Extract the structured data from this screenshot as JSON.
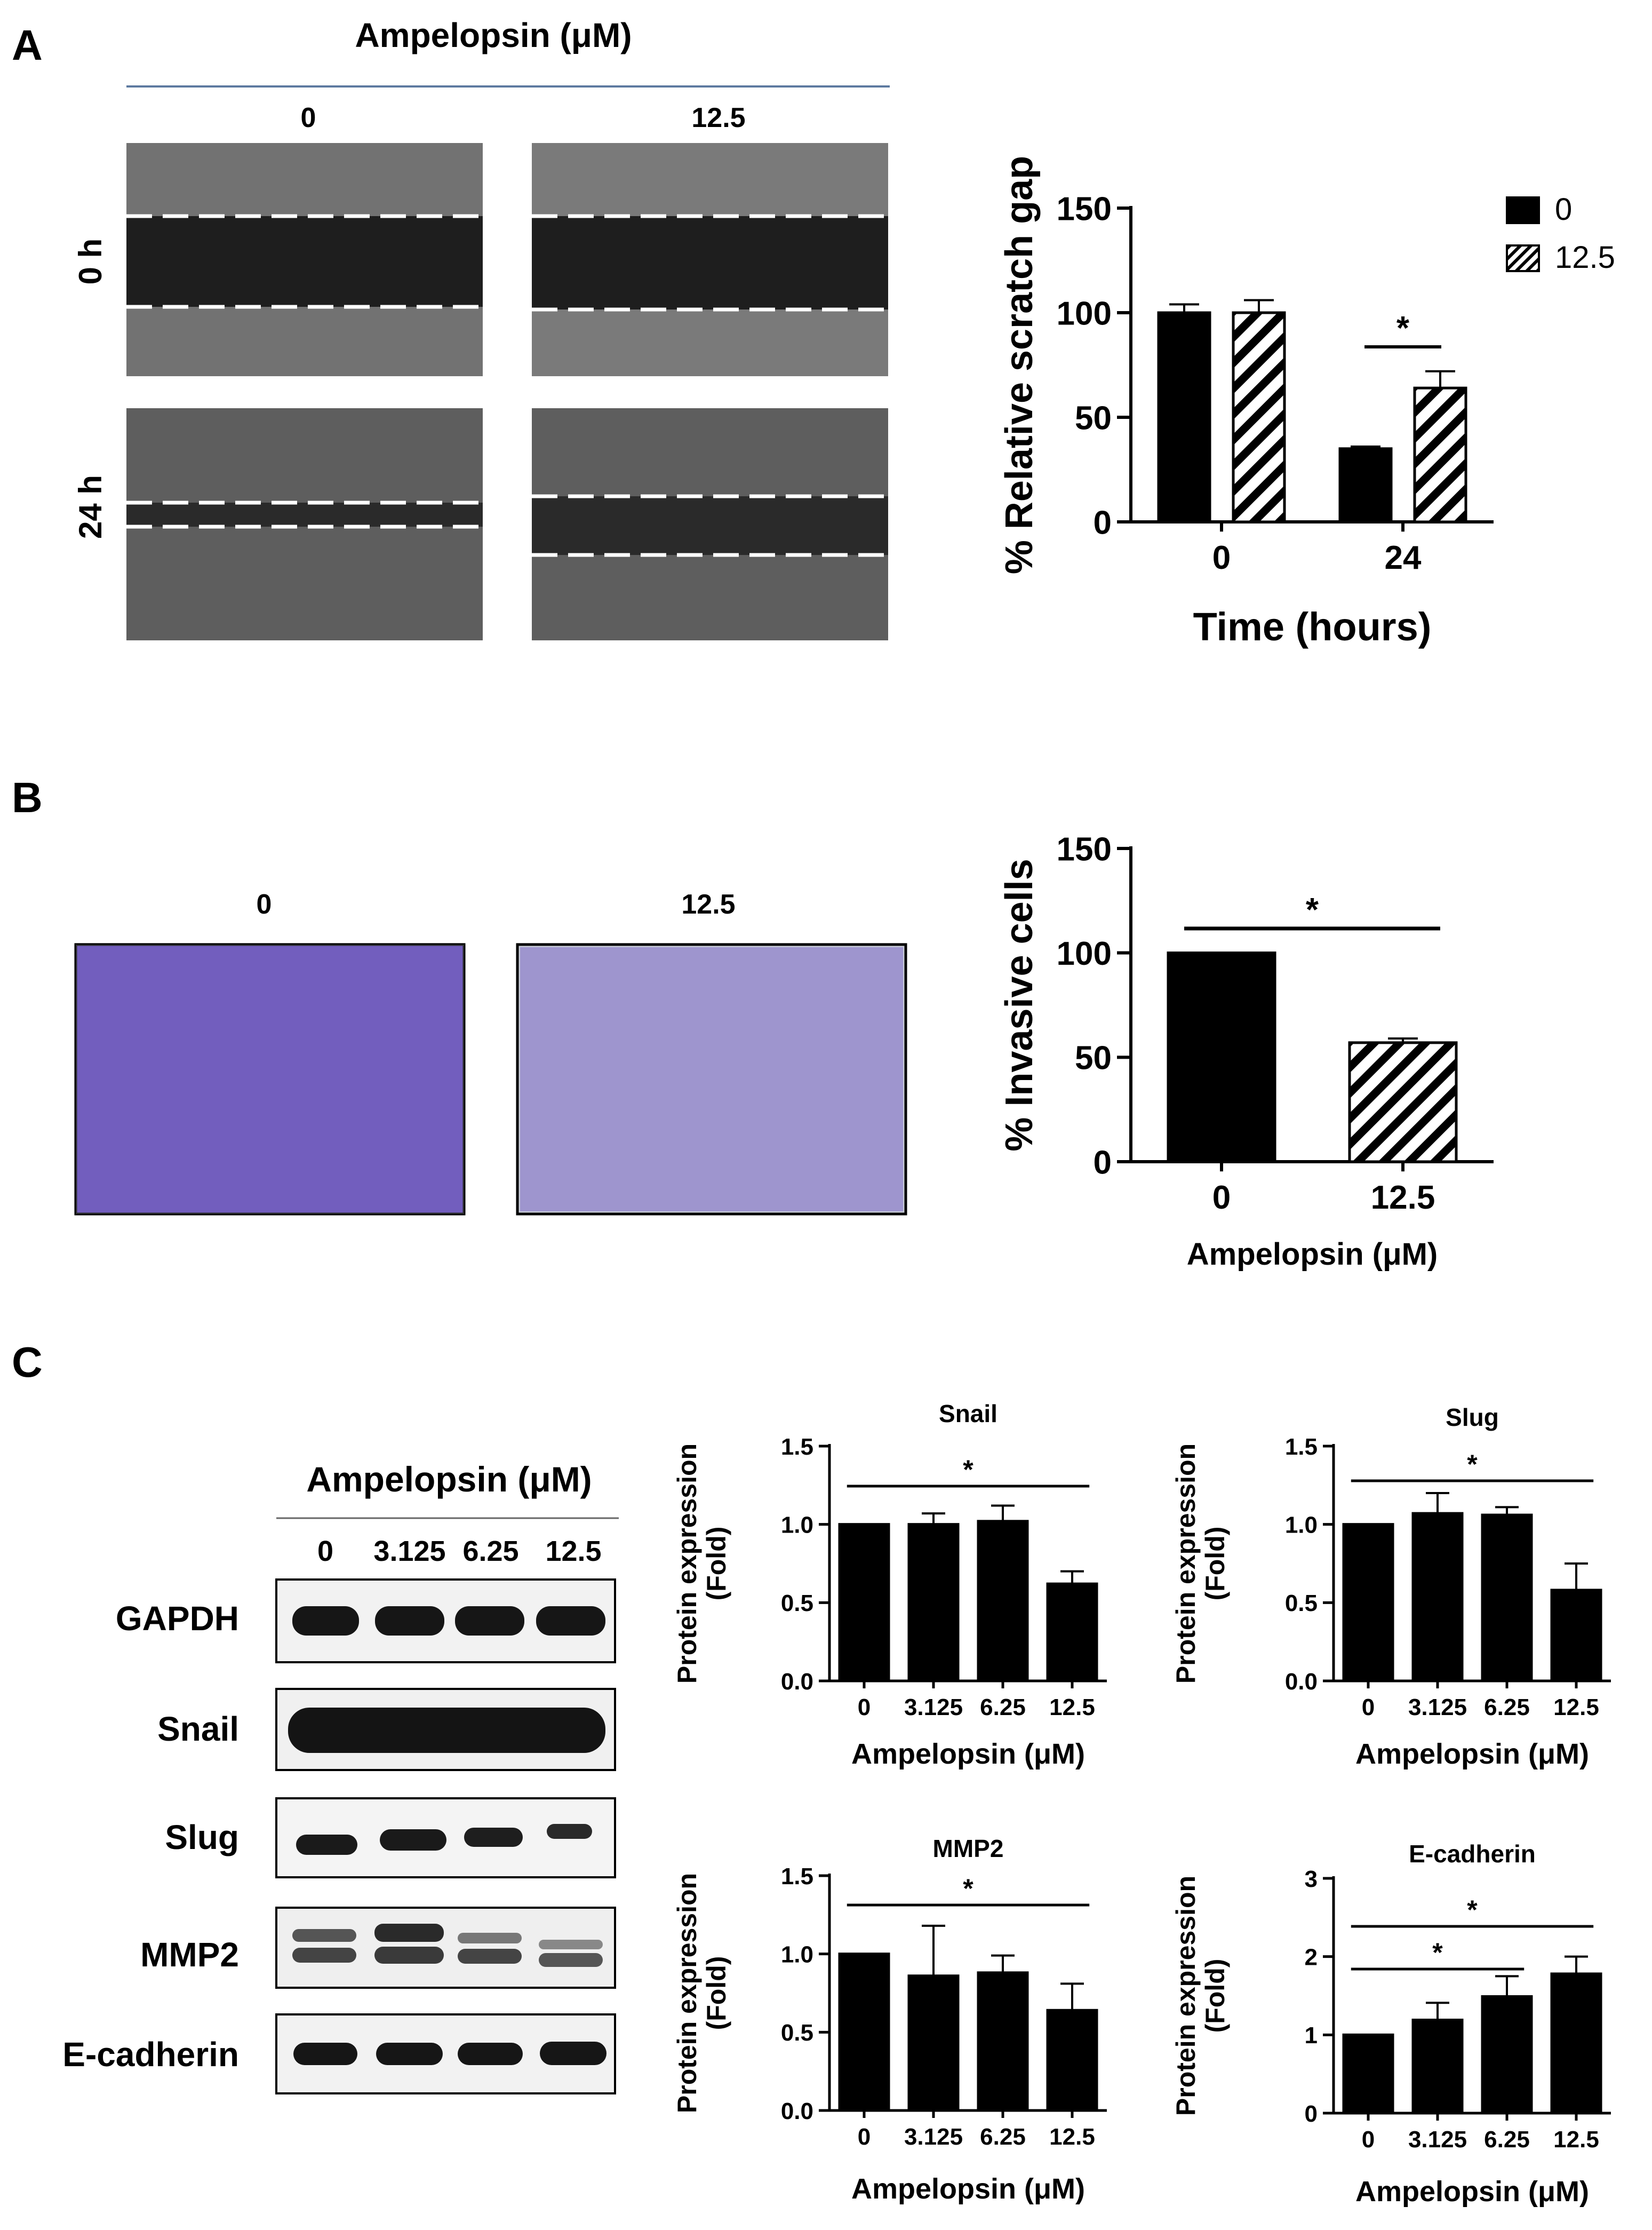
{
  "panels": {
    "A": {
      "letter": "A",
      "treatment_title": "Ampelopsin (μM)",
      "columns": [
        "0",
        "12.5"
      ],
      "rows": [
        "0 h",
        "24 h"
      ],
      "image_description": "wound-healing scratch assay micrographs with dashed lines marking scratch edges"
    },
    "B": {
      "letter": "B",
      "columns": [
        "0",
        "12.5"
      ],
      "image_description": "crystal violet stained invasive cells on transwell membrane"
    },
    "C": {
      "letter": "C",
      "blot_title": "Ampelopsin (μM)",
      "lanes": [
        "0",
        "3.125",
        "6.25",
        "12.5"
      ],
      "proteins": [
        "GAPDH",
        "Snail",
        "Slug",
        "MMP2",
        "E-cadherin"
      ]
    }
  },
  "colors": {
    "bar_fill": "#000000",
    "image_bg": "#2b2b2b",
    "crystal_violet": "#5a3fb8",
    "membrane": "#c9cdd8",
    "header_rule": "#5d7aa0"
  },
  "chart_data": [
    {
      "id": "A-scratch",
      "type": "bar",
      "title": "",
      "xlabel": "Time (hours)",
      "ylabel": "% Relative scratch gap",
      "categories": [
        "0",
        "24"
      ],
      "series": [
        {
          "name": "0",
          "pattern": "solid",
          "values": [
            100,
            35
          ],
          "errors": [
            4,
            1
          ]
        },
        {
          "name": "12.5",
          "pattern": "hatch",
          "values": [
            100,
            64
          ],
          "errors": [
            6,
            8
          ]
        }
      ],
      "ylim": [
        0,
        150
      ],
      "yticks": [
        0,
        50,
        100,
        150
      ],
      "legend": "top-right",
      "significance": [
        {
          "category_index": 1,
          "label": "*"
        }
      ]
    },
    {
      "id": "B-invasion",
      "type": "bar",
      "title": "",
      "xlabel": "Ampelopsin (μM)",
      "ylabel": "% Invasive cells",
      "categories": [
        "0",
        "12.5"
      ],
      "values": [
        100,
        57
      ],
      "errors": [
        0,
        2
      ],
      "patterns": [
        "solid",
        "hatch"
      ],
      "ylim": [
        0,
        150
      ],
      "yticks": [
        0,
        50,
        100,
        150
      ],
      "significance": [
        {
          "from": 0,
          "to": 1,
          "label": "*"
        }
      ]
    },
    {
      "id": "C-snail",
      "type": "bar",
      "title": "Snail",
      "xlabel": "Ampelopsin (μM)",
      "ylabel": "Protein expression (Fold)",
      "categories": [
        "0",
        "3.125",
        "6.25",
        "12.5"
      ],
      "values": [
        1.0,
        1.0,
        1.02,
        0.62
      ],
      "errors": [
        0,
        0.07,
        0.1,
        0.08
      ],
      "ylim": [
        0,
        1.5
      ],
      "yticks": [
        "0.0",
        "0.5",
        "1.0",
        "1.5"
      ],
      "significance": [
        {
          "from": 0,
          "to": 3,
          "label": "*"
        }
      ]
    },
    {
      "id": "C-slug",
      "type": "bar",
      "title": "Slug",
      "xlabel": "Ampelopsin (μM)",
      "ylabel": "Protein expression (Fold)",
      "categories": [
        "0",
        "3.125",
        "6.25",
        "12.5"
      ],
      "values": [
        1.0,
        1.07,
        1.06,
        0.58
      ],
      "errors": [
        0,
        0.13,
        0.05,
        0.17
      ],
      "ylim": [
        0,
        1.5
      ],
      "yticks": [
        "0.0",
        "0.5",
        "1.0",
        "1.5"
      ],
      "significance": [
        {
          "from": 0,
          "to": 3,
          "label": "*"
        }
      ]
    },
    {
      "id": "C-mmp2",
      "type": "bar",
      "title": "MMP2",
      "xlabel": "Ampelopsin (μM)",
      "ylabel": "Protein expression (Fold)",
      "categories": [
        "0",
        "3.125",
        "6.25",
        "12.5"
      ],
      "values": [
        1.0,
        0.86,
        0.88,
        0.64
      ],
      "errors": [
        0,
        0.32,
        0.11,
        0.17
      ],
      "ylim": [
        0,
        1.5
      ],
      "yticks": [
        "0.0",
        "0.5",
        "1.0",
        "1.5"
      ],
      "significance": [
        {
          "from": 0,
          "to": 3,
          "label": "*"
        }
      ]
    },
    {
      "id": "C-ecadherin",
      "type": "bar",
      "title": "E-cadherin",
      "xlabel": "Ampelopsin (μM)",
      "ylabel": "Protein expression (Fold)",
      "categories": [
        "0",
        "3.125",
        "6.25",
        "12.5"
      ],
      "values": [
        1.0,
        1.19,
        1.49,
        1.78
      ],
      "errors": [
        0,
        0.22,
        0.26,
        0.22
      ],
      "ylim": [
        0,
        3
      ],
      "yticks": [
        "0",
        "1",
        "2",
        "3"
      ],
      "significance": [
        {
          "from": 0,
          "to": 2,
          "label": "*"
        },
        {
          "from": 0,
          "to": 3,
          "label": "*"
        }
      ]
    }
  ]
}
